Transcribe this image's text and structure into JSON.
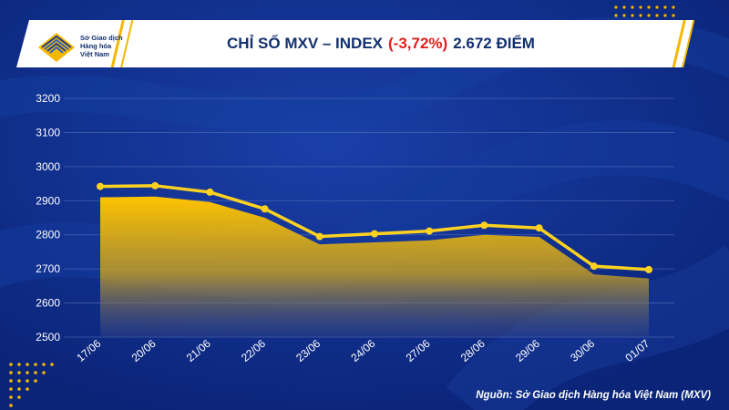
{
  "header": {
    "logo_line1": "Sở Giao dịch",
    "logo_line2": "Hàng hóa",
    "logo_line3": "Việt Nam",
    "title_prefix": "CHỈ SỐ MXV – INDEX",
    "title_change": "(-3,72%)",
    "title_value": "2.672 ĐIỂM"
  },
  "footer": {
    "source": "Nguồn: Sở Giao dịch Hàng hóa Việt Nam (MXV)"
  },
  "colors": {
    "background": "#0b2a86",
    "line": "#ffd21f",
    "area_top": "#f5b800",
    "change_red": "#e02020"
  },
  "chart_data": {
    "type": "line",
    "categories": [
      "17/06",
      "20/06",
      "21/06",
      "22/06",
      "23/06",
      "24/06",
      "27/06",
      "28/06",
      "29/06",
      "30/06",
      "01/07"
    ],
    "series": [
      {
        "values": [
          2942,
          2944,
          2925,
          2876,
          2795,
          2803,
          2811,
          2828,
          2820,
          2708,
          2698
        ]
      },
      {
        "values": [
          2910,
          2912,
          2896,
          2850,
          2772,
          2778,
          2784,
          2800,
          2794,
          2684,
          2672
        ]
      }
    ],
    "ylim": [
      2500,
      3200
    ],
    "yticks": [
      2500,
      2600,
      2700,
      2800,
      2900,
      3000,
      3100,
      3200
    ],
    "grid": true
  }
}
